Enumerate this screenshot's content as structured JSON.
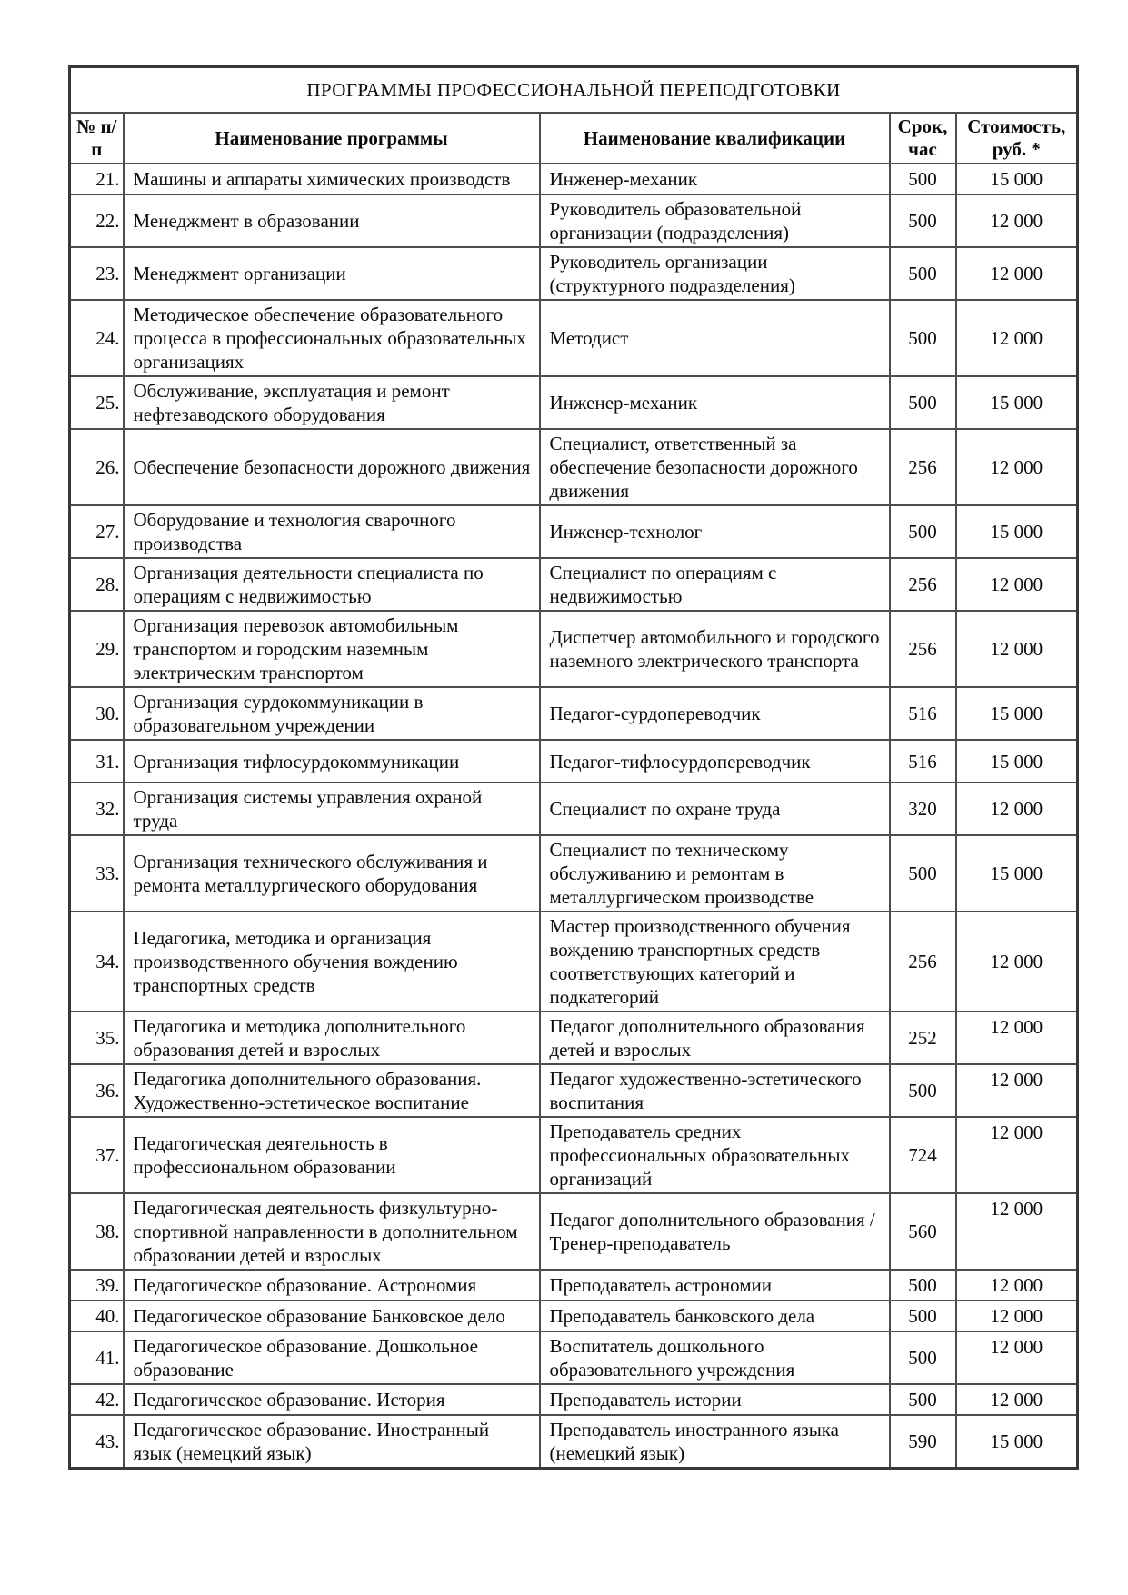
{
  "document": {
    "title": "ПРОГРАММЫ ПРОФЕССИОНАЛЬНОЙ ПЕРЕПОДГОТОВКИ",
    "columns": {
      "num": "№ п/п",
      "program": "Наименование программы",
      "qualification": "Наименование квалификации",
      "duration": "Срок, час",
      "price": "Стоимость, руб. *"
    },
    "rows": [
      {
        "num": "21.",
        "program": "Машины и аппараты химических производств",
        "qualification": "Инженер-механик",
        "duration": "500",
        "price": "15 000",
        "price_top": false
      },
      {
        "num": "22.",
        "program": "Менеджмент в образовании",
        "qualification": "Руководитель образовательной организации (подразделения)",
        "duration": "500",
        "price": "12 000",
        "price_top": false
      },
      {
        "num": "23.",
        "program": "Менеджмент организации",
        "qualification": "Руководитель организации (структурного подразделения)",
        "duration": "500",
        "price": "12 000",
        "price_top": false
      },
      {
        "num": "24.",
        "program": "Методическое обеспечение образовательного процесса в профессиональных образовательных организациях",
        "qualification": "Методист",
        "duration": "500",
        "price": "12 000",
        "price_top": false
      },
      {
        "num": "25.",
        "program": "Обслуживание, эксплуатация и ремонт нефтезаводского оборудования",
        "qualification": "Инженер-механик",
        "duration": "500",
        "price": "15 000",
        "price_top": false
      },
      {
        "num": "26.",
        "program": "Обеспечение безопасности дорожного движения",
        "qualification": "Специалист, ответственный за обеспечение безопасности дорожного движения",
        "duration": "256",
        "price": "12 000",
        "price_top": false
      },
      {
        "num": "27.",
        "program": "Оборудование и технология сварочного производства",
        "qualification": "Инженер-технолог",
        "duration": "500",
        "price": "15 000",
        "price_top": false
      },
      {
        "num": "28.",
        "program": "Организация деятельности специалиста по операциям с недвижимостью",
        "qualification": "Специалист по операциям с недвижимостью",
        "duration": "256",
        "price": "12 000",
        "price_top": false
      },
      {
        "num": "29.",
        "program": "Организация перевозок автомобильным транспортом и городским наземным электрическим транспортом",
        "qualification": "Диспетчер автомобильного и городского наземного электрического транспорта",
        "duration": "256",
        "price": "12 000",
        "price_top": false
      },
      {
        "num": "30.",
        "program": "Организация сурдокоммуникации в образовательном учреждении",
        "qualification": "Педагог-сурдопереводчик",
        "duration": "516",
        "price": "15 000",
        "price_top": false
      },
      {
        "num": "31.",
        "program": "Организация тифлосурдокоммуникации",
        "qualification": "Педагог-тифлосурдопереводчик",
        "duration": "516",
        "price": "15 000",
        "price_top": false
      },
      {
        "num": "32.",
        "program": "Организация системы управления охраной труда",
        "qualification": "Специалист по охране труда",
        "duration": "320",
        "price": "12 000",
        "price_top": false
      },
      {
        "num": "33.",
        "program": "Организация технического обслуживания и ремонта металлургического оборудования",
        "qualification": "Специалист по техническому обслуживанию и ремонтам в металлургическом производстве",
        "duration": "500",
        "price": "15 000",
        "price_top": false
      },
      {
        "num": "34.",
        "program": "Педагогика, методика и организация производственного обучения вождению транспортных средств",
        "qualification": "Мастер производственного обучения вождению транспортных средств соответствующих категорий и подкатегорий",
        "duration": "256",
        "price": "12 000",
        "price_top": false
      },
      {
        "num": "35.",
        "program": "Педагогика и методика дополнительного образования детей и взрослых",
        "qualification": "Педагог дополнительного образования детей и взрослых",
        "duration": "252",
        "price": "12 000",
        "price_top": true
      },
      {
        "num": "36.",
        "program": "Педагогика дополнительного образования. Художественно-эстетическое воспитание",
        "qualification": "Педагог художественно-эстетического воспитания",
        "duration": "500",
        "price": "12 000",
        "price_top": true
      },
      {
        "num": "37.",
        "program": "Педагогическая деятельность в профессиональном образовании",
        "qualification": "Преподаватель средних профессиональных образовательных организаций",
        "duration": "724",
        "price": "12 000",
        "price_top": true
      },
      {
        "num": "38.",
        "program": "Педагогическая деятельность физкультурно-спортивной направленности в дополнительном образовании детей и взрослых",
        "qualification": "Педагог дополнительного образования / Тренер-преподаватель",
        "duration": "560",
        "price": "12 000",
        "price_top": true
      },
      {
        "num": "39.",
        "program": "Педагогическое образование. Астрономия",
        "qualification": "Преподаватель астрономии",
        "duration": "500",
        "price": "12 000",
        "price_top": true
      },
      {
        "num": "40.",
        "program": "Педагогическое образование Банковское дело",
        "qualification": "Преподаватель банковского дела",
        "duration": "500",
        "price": "12 000",
        "price_top": true
      },
      {
        "num": "41.",
        "program": "Педагогическое образование. Дошкольное образование",
        "qualification": "Воспитатель дошкольного образовательного учреждения",
        "duration": "500",
        "price": "12 000",
        "price_top": true
      },
      {
        "num": "42.",
        "program": "Педагогическое образование. История",
        "qualification": "Преподаватель истории",
        "duration": "500",
        "price": "12 000",
        "price_top": true
      },
      {
        "num": "43.",
        "program": "Педагогическое образование. Иностранный язык (немецкий язык)",
        "qualification": "Преподаватель иностранного языка (немецкий язык)",
        "duration": "590",
        "price": "15 000",
        "price_top": false
      }
    ]
  }
}
